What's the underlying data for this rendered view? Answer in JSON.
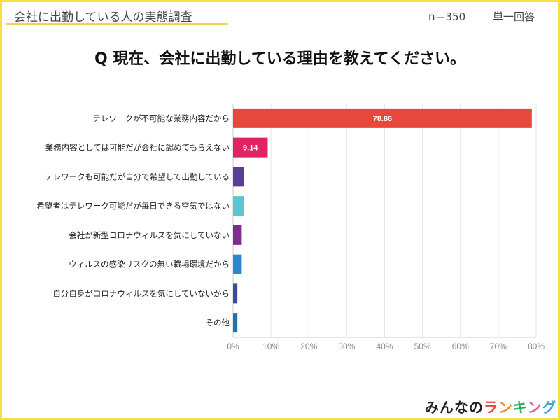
{
  "header": {
    "title": "会社に出勤している人の実態調査",
    "sample": "n＝350",
    "answer_type": "単一回答"
  },
  "question": "Q 現在、会社に出勤している理由を教えてください。",
  "logo": "みんなのランキング",
  "chart_data": {
    "type": "bar",
    "orientation": "horizontal",
    "categories": [
      "テレワークが不可能な業務内容だから",
      "業務内容としては可能だが会社に認めてもらえない",
      "テレワークも可能だが自分で希望して出勤している",
      "希望者はテレワーク可能だが毎日できる空気ではない",
      "会社が新型コロナウィルスを気にしていない",
      "ウィルスの感染リスクの無い職場環境だから",
      "自分自身がコロナウィルスを気にしていないから",
      "その他"
    ],
    "values": [
      78.86,
      9.14,
      2.86,
      2.86,
      2.29,
      2.29,
      1.14,
      1.14
    ],
    "data_labels": [
      "78.86",
      "9.14",
      "",
      "",
      "",
      "",
      "",
      ""
    ],
    "colors": [
      "#e8473c",
      "#df2461",
      "#5a3f99",
      "#5cc4d2",
      "#7d2f8c",
      "#2f86cc",
      "#3e4a9c",
      "#1f72b0"
    ],
    "xlim": [
      0,
      80
    ],
    "ticks": [
      "0%",
      "10%",
      "20%",
      "30%",
      "40%",
      "50%",
      "60%",
      "70%",
      "80%"
    ],
    "grid": true
  }
}
